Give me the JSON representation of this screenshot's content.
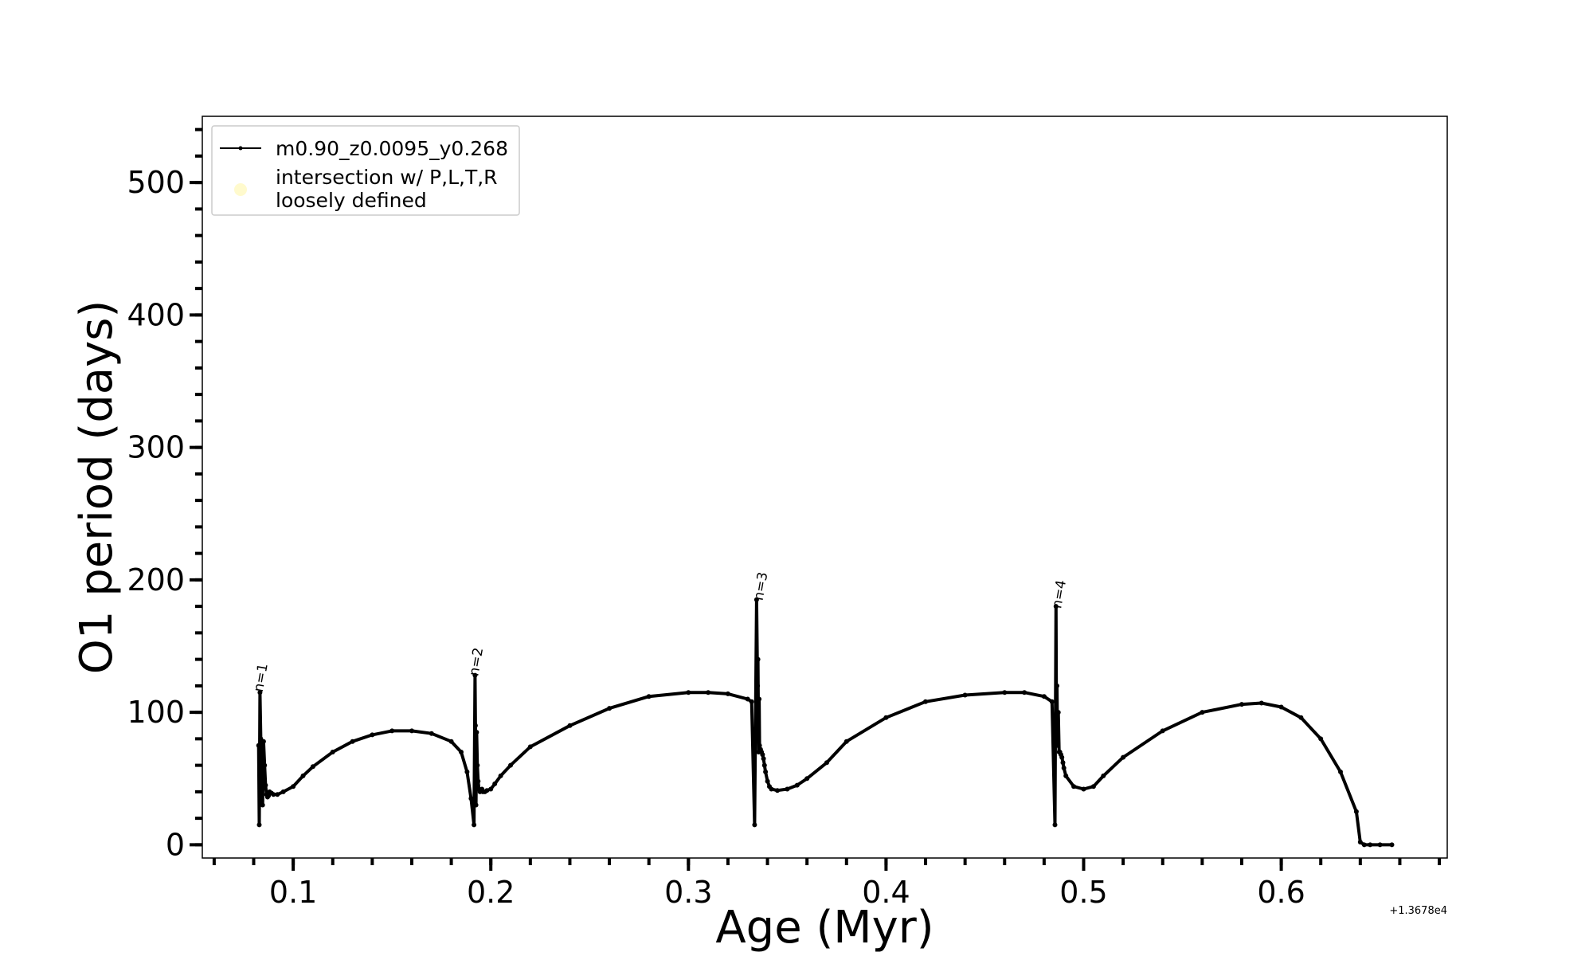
{
  "chart_data": {
    "type": "line",
    "xlabel": "Age (Myr)",
    "ylabel": "O1 period (days)",
    "x_offset_label": "+1.3678e4",
    "xlim": [
      0.054,
      0.684
    ],
    "ylim": [
      -10,
      550
    ],
    "x_ticks": [
      {
        "value": 0.1,
        "label": "0.1"
      },
      {
        "value": 0.2,
        "label": "0.2"
      },
      {
        "value": 0.3,
        "label": "0.3"
      },
      {
        "value": 0.4,
        "label": "0.4"
      },
      {
        "value": 0.5,
        "label": "0.5"
      },
      {
        "value": 0.6,
        "label": "0.6"
      }
    ],
    "y_ticks": [
      {
        "value": 0,
        "label": "0"
      },
      {
        "value": 100,
        "label": "100"
      },
      {
        "value": 200,
        "label": "200"
      },
      {
        "value": 300,
        "label": "300"
      },
      {
        "value": 400,
        "label": "400"
      },
      {
        "value": 500,
        "label": "500"
      }
    ],
    "x_minor_step": 0.02,
    "y_minor_step": 20,
    "grid": false,
    "legend_position": "top-left",
    "legend": [
      {
        "label": "m0.90_z0.0095_y0.268",
        "marker": "line",
        "color": "#000000"
      },
      {
        "label_lines": [
          "intersection w/ P,L,T,R",
          "loosely defined"
        ],
        "marker": "circle",
        "color": "#fffacd"
      }
    ],
    "series": [
      {
        "name": "m0.90_z0.0095_y0.268",
        "color": "#000000",
        "x": [
          0.0825,
          0.0828,
          0.0832,
          0.0836,
          0.084,
          0.0845,
          0.085,
          0.0855,
          0.086,
          0.0865,
          0.087,
          0.0875,
          0.088,
          0.089,
          0.09,
          0.092,
          0.095,
          0.1,
          0.105,
          0.11,
          0.12,
          0.13,
          0.14,
          0.15,
          0.16,
          0.17,
          0.18,
          0.185,
          0.188,
          0.19,
          0.1915,
          0.192,
          0.1922,
          0.1925,
          0.1928,
          0.1932,
          0.1936,
          0.194,
          0.1945,
          0.195,
          0.1955,
          0.196,
          0.197,
          0.198,
          0.2,
          0.202,
          0.205,
          0.21,
          0.22,
          0.24,
          0.26,
          0.28,
          0.3,
          0.31,
          0.32,
          0.33,
          0.332,
          0.3335,
          0.3345,
          0.335,
          0.3352,
          0.3355,
          0.3358,
          0.336,
          0.3365,
          0.337,
          0.3375,
          0.338,
          0.3385,
          0.339,
          0.34,
          0.341,
          0.342,
          0.345,
          0.35,
          0.355,
          0.36,
          0.37,
          0.38,
          0.4,
          0.42,
          0.44,
          0.46,
          0.47,
          0.48,
          0.484,
          0.4855,
          0.486,
          0.4862,
          0.4865,
          0.4868,
          0.4872,
          0.4876,
          0.488,
          0.4885,
          0.489,
          0.4895,
          0.49,
          0.491,
          0.495,
          0.5,
          0.505,
          0.51,
          0.52,
          0.54,
          0.56,
          0.58,
          0.59,
          0.6,
          0.61,
          0.62,
          0.63,
          0.638,
          0.64,
          0.642,
          0.645,
          0.65,
          0.656
        ],
        "y": [
          75,
          15,
          115,
          80,
          60,
          30,
          78,
          60,
          45,
          38,
          36,
          37,
          40,
          39,
          38,
          38,
          40,
          44,
          52,
          59,
          70,
          78,
          83,
          86,
          86,
          84,
          78,
          70,
          55,
          35,
          15,
          128,
          90,
          30,
          85,
          60,
          48,
          42,
          40,
          41,
          42,
          40,
          40,
          41,
          42,
          46,
          52,
          60,
          74,
          90,
          103,
          112,
          115,
          115,
          114,
          110,
          108,
          15,
          185,
          120,
          140,
          70,
          110,
          75,
          72,
          70,
          68,
          65,
          60,
          55,
          48,
          44,
          42,
          41,
          42,
          45,
          50,
          62,
          78,
          96,
          108,
          113,
          115,
          115,
          112,
          108,
          15,
          180,
          100,
          120,
          75,
          100,
          70,
          70,
          68,
          66,
          62,
          58,
          52,
          44,
          42,
          44,
          52,
          66,
          86,
          100,
          106,
          107,
          104,
          96,
          80,
          55,
          25,
          2,
          0,
          0,
          0,
          0
        ]
      }
    ],
    "annotations": [
      {
        "text": "n=1",
        "x": 0.0845,
        "y": 115
      },
      {
        "text": "n=2",
        "x": 0.1935,
        "y": 127
      },
      {
        "text": "n=3",
        "x": 0.3375,
        "y": 184
      },
      {
        "text": "n=4",
        "x": 0.4885,
        "y": 178
      }
    ]
  }
}
